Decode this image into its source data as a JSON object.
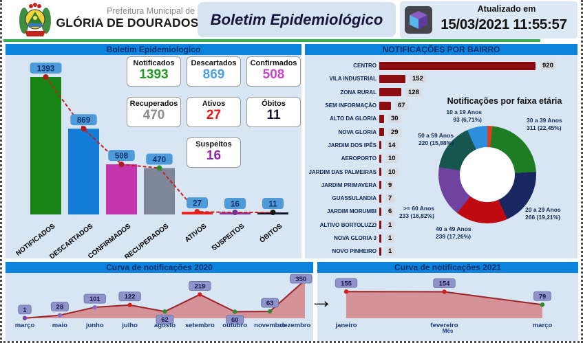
{
  "header": {
    "org_line1": "Prefeitura Municipal de",
    "org_line2": "GLÓRIA DE DOURADOS",
    "title": "Boletim Epidemiológico",
    "updated_label": "Atualizado em",
    "updated_value": "15/03/2021 11:55:57"
  },
  "misc": {
    "arrow": "→"
  },
  "summary_cards": [
    {
      "label": "Notificados",
      "value": "1393",
      "color": "#229a22"
    },
    {
      "label": "Descartados",
      "value": "869",
      "color": "#4e9fe0"
    },
    {
      "label": "Confirmados",
      "value": "508",
      "color": "#cc44cc"
    },
    {
      "label": "Recuperados",
      "value": "470",
      "color": "#8c8c8c"
    },
    {
      "label": "Ativos",
      "value": "27",
      "color": "#e81313"
    },
    {
      "label": "Óbitos",
      "value": "11",
      "color": "#14143c"
    },
    {
      "label": "Suspeitos",
      "value": "16",
      "color": "#9326a8"
    }
  ],
  "chart_data": [
    {
      "id": "summary_bars",
      "type": "bar",
      "title": "Boletim Epidemiologico",
      "categories": [
        "NOTIFICADOS",
        "DESCARTADOS",
        "CONFIRMADOS",
        "RECUPERADOS",
        "ATIVOS",
        "SUSPEITOS",
        "ÓBITOS"
      ],
      "values": [
        1393,
        869,
        508,
        470,
        27,
        16,
        11
      ],
      "bar_colors": [
        "#168516",
        "#127cd6",
        "#c434ad",
        "#7e8799",
        "#e8211a",
        "#8b2fa0",
        "#15152e"
      ],
      "point_colors": [
        "#b01a1a",
        "#b01a1a",
        "#b01a1a",
        "#2e8b2e",
        "#e02020",
        "#7a2d8a",
        "#111111"
      ],
      "badge_bg": "#4f9ad8",
      "trend_line": true,
      "ylim": [
        0,
        1450
      ]
    },
    {
      "id": "bairros",
      "type": "bar",
      "orientation": "horizontal",
      "title": "NOTIFICAÇÕES POR BAIRRO",
      "categories": [
        "CENTRO",
        "VILA INDUSTRIAL",
        "ZONA RURAL",
        "SEM INFORMAÇÃO",
        "ALTO DA GLORIA",
        "NOVA GLORIA",
        "JARDIM DOS IPÊS",
        "AEROPORTO",
        "JARDIM DAS PALMEIRAS",
        "JARDIM PRIMAVERA",
        "GUASSULANDIA",
        "JARDIM MORUMBI",
        "ALTIVO BORTOLUZZI",
        "NOVA GLORIA 3",
        "NOVO PINHEIRO"
      ],
      "values": [
        920,
        152,
        128,
        67,
        30,
        29,
        14,
        10,
        10,
        9,
        7,
        6,
        1,
        1,
        1
      ],
      "bar_color": "#8c0c10",
      "xlim": [
        0,
        950
      ]
    },
    {
      "id": "faixa_etaria",
      "type": "pie",
      "donut": true,
      "title": "Notificações por faixa etária",
      "slices": [
        {
          "label": "",
          "value": null,
          "pct": 1.67,
          "value_label": "",
          "color": "#d8401f"
        },
        {
          "label": "30 a 39 Anos",
          "value": 311,
          "pct": 22.45,
          "value_label": "311 (22,45%)",
          "color": "#1e7d22"
        },
        {
          "label": "20 a 29 Anos",
          "value": 266,
          "pct": 19.21,
          "value_label": "266 (19,21%)",
          "color": "#18275f"
        },
        {
          "label": "40 a 49 Anos",
          "value": 239,
          "pct": 17.26,
          "value_label": "239 (17,26%)",
          "color": "#c00a12"
        },
        {
          "label": ">= 60 Anos",
          "value": 233,
          "pct": 16.82,
          "value_label": "233 (16,82%)",
          "color": "#6f42a0"
        },
        {
          "label": "50 a 59 Anos",
          "value": 220,
          "pct": 15.88,
          "value_label": "220 (15,88%)",
          "color": "#17564e"
        },
        {
          "label": "10 a 19 Anos",
          "value": 93,
          "pct": 6.71,
          "value_label": "93 (6,71%)",
          "color": "#2d8ede"
        }
      ]
    },
    {
      "id": "curve_2020",
      "type": "area",
      "title": "Curva de notificações 2020",
      "categories": [
        "março",
        "maio",
        "junho",
        "julho",
        "agosto",
        "setembro",
        "outubro",
        "novembro",
        "dezembro"
      ],
      "values": [
        1,
        28,
        101,
        122,
        62,
        219,
        60,
        63,
        350
      ],
      "line_color": "#9c2327",
      "fill_color": "#d59298",
      "point_colors": [
        "#7a3fa0",
        "#8a6fc0",
        "#8a6fc0",
        "#d42020",
        "#2e8b2e",
        "#d42020",
        "#2e8b2e",
        "#2e8b2e",
        "#d42020"
      ],
      "badge_bg": "#9093c9",
      "ylim": [
        0,
        380
      ]
    },
    {
      "id": "curve_2021",
      "type": "area",
      "title": "Curva de notificações 2021",
      "xlabel": "Mês",
      "categories": [
        "janeiro",
        "fevereiro",
        "março"
      ],
      "values": [
        155,
        154,
        79
      ],
      "line_color": "#9c2327",
      "fill_color": "#d59298",
      "point_colors": [
        "#d42020",
        "#d42020",
        "#2e8b2e"
      ],
      "badge_bg": "#9093c9",
      "ylim": [
        0,
        240
      ]
    }
  ]
}
